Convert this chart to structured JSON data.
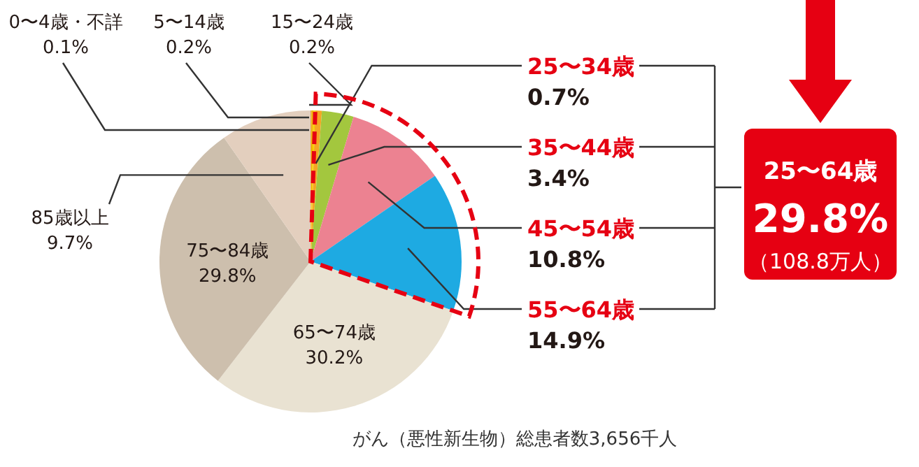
{
  "chart_data": {
    "type": "pie",
    "categories": [
      "0〜4歳・不詳",
      "5〜14歳",
      "15〜24歳",
      "25〜34歳",
      "35〜44歳",
      "45〜54歳",
      "55〜64歳",
      "65〜74歳",
      "75〜84歳",
      "85歳以上"
    ],
    "values": [
      0.1,
      0.2,
      0.2,
      0.7,
      3.4,
      10.8,
      14.9,
      30.2,
      29.8,
      9.7
    ],
    "value_labels": [
      "0.1%",
      "0.2%",
      "0.2%",
      "0.7%",
      "3.4%",
      "10.8%",
      "14.9%",
      "30.2%",
      "29.8%",
      "9.7%"
    ],
    "colors": [
      "#e8a33c",
      "#f0b400",
      "#f8d000",
      "#f5a623",
      "#a3c73e",
      "#ec8291",
      "#1eaae2",
      "#e9e2d2",
      "#cdbfad",
      "#e3cfbe"
    ],
    "annotations": [
      "25〜64歳",
      "29.8%",
      "（108.8万人）",
      "がん（悪性新生物）総患者数3,656千人"
    ]
  }
}
